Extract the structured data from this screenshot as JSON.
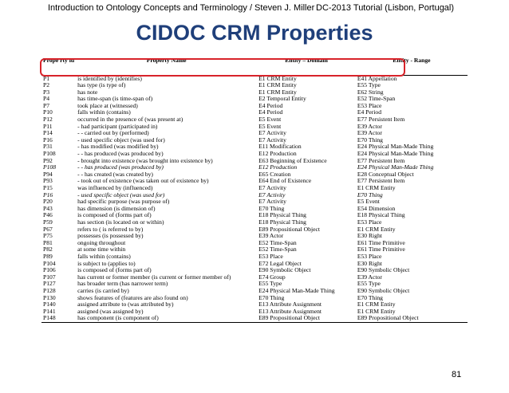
{
  "header": {
    "left": "Introduction to Ontology Concepts and Terminology / Steven J. Miller",
    "right": "DC-2013 Tutorial (Lisbon, Portugal)"
  },
  "title": "CIDOC CRM Properties",
  "table": {
    "columns": [
      "Prope rty id",
      "Property Name",
      "Entity – Domain",
      "Entity - Range"
    ],
    "rows": [
      {
        "id": "P1",
        "name": "is identified by (identifies)",
        "domain": "E1 CRM Entity",
        "range": "E41 Appellation"
      },
      {
        "id": "P2",
        "name": "has type (is type of)",
        "domain": "E1 CRM Entity",
        "range": "E55 Type"
      },
      {
        "id": "P3",
        "name": "has note",
        "domain": "E1 CRM Entity",
        "range": "E62 String"
      },
      {
        "id": "P4",
        "name": "has time-span (is time-span of)",
        "domain": "E2 Temporal Entity",
        "range": "E52 Time-Span"
      },
      {
        "id": "P7",
        "name": "took place at (witnessed)",
        "domain": "E4 Period",
        "range": "E53 Place"
      },
      {
        "id": "P10",
        "name": "falls within (contains)",
        "domain": "E4 Period",
        "range": "E4 Period"
      },
      {
        "id": "P12",
        "name": "occurred in the presence of (was present at)",
        "domain": "E5 Event",
        "range": "E77 Persistent Item"
      },
      {
        "id": "P11",
        "name": "- had participant (participated in)",
        "domain": "E5 Event",
        "range": "E39 Actor"
      },
      {
        "id": "P14",
        "name": "- - carried out by (performed)",
        "domain": "E7 Activity",
        "range": "E39 Actor"
      },
      {
        "id": "P16",
        "name": "- used specific object (was used for)",
        "domain": "E7 Activity",
        "range": "E70 Thing"
      },
      {
        "id": "P31",
        "name": "- has modified (was modified by)",
        "domain": "E11 Modification",
        "range": "E24 Physical Man-Made Thing"
      },
      {
        "id": "P108",
        "name": "- - has produced (was produced by)",
        "domain": "E12 Production",
        "range": "E24 Physical Man-Made Thing"
      },
      {
        "id": "P92",
        "name": "- brought into existence (was brought into existence by)",
        "domain": "E63 Beginning of Existence",
        "range": "E77 Persistent Item"
      },
      {
        "id": "P108",
        "name": "- - has produced (was produced by)",
        "domain": "E12 Production",
        "range": "E24 Physical Man-Made Thing",
        "italic": true
      },
      {
        "id": "P94",
        "name": "- - has created (was created by)",
        "domain": "E65 Creation",
        "range": "E28 Conceptual Object"
      },
      {
        "id": "P93",
        "name": "- took out of existence (was taken out of existence by)",
        "domain": "E64 End of Existence",
        "range": "E77 Persistent Item"
      },
      {
        "id": "P15",
        "name": "was influenced by (influenced)",
        "domain": "E7 Activity",
        "range": "E1 CRM Entity"
      },
      {
        "id": "P16",
        "name": "- used specific object (was used for)",
        "domain": "E7 Activity",
        "range": "E70 Thing",
        "italic": true
      },
      {
        "id": "P20",
        "name": "had specific purpose (was purpose of)",
        "domain": "E7 Activity",
        "range": "E5 Event"
      },
      {
        "id": "P43",
        "name": "has dimension (is dimension of)",
        "domain": "E70 Thing",
        "range": "E54 Dimension"
      },
      {
        "id": "P46",
        "name": "is composed of (forms part of)",
        "domain": "E18 Physical Thing",
        "range": "E18 Physical Thing"
      },
      {
        "id": "P59",
        "name": "has section (is located on or within)",
        "domain": "E18 Physical Thing",
        "range": "E53 Place"
      },
      {
        "id": "P67",
        "name": "refers to ( is referred to by)",
        "domain": "E89 Propositional Object",
        "range": "E1 CRM Entity"
      },
      {
        "id": "P75",
        "name": "possesses (is possessed by)",
        "domain": "E39 Actor",
        "range": "E30 Right"
      },
      {
        "id": "P81",
        "name": "ongoing throughout",
        "domain": "E52 Time-Span",
        "range": "E61 Time Primitive"
      },
      {
        "id": "P82",
        "name": "at some time within",
        "domain": "E52 Time-Span",
        "range": "E61 Time Primitive"
      },
      {
        "id": "P89",
        "name": "falls within (contains)",
        "domain": "E53 Place",
        "range": "E53 Place"
      },
      {
        "id": "P104",
        "name": "is subject to (applies to)",
        "domain": "E72 Legal Object",
        "range": "E30 Right"
      },
      {
        "id": "P106",
        "name": "is composed of (forms part of)",
        "domain": "E90 Symbolic Object",
        "range": "E90 Symbolic Object"
      },
      {
        "id": "P107",
        "name": "has current or former member (is current or former member of)",
        "domain": "E74 Group",
        "range": "E39 Actor"
      },
      {
        "id": "P127",
        "name": "has broader term (has narrower term)",
        "domain": "E55 Type",
        "range": "E55 Type"
      },
      {
        "id": "P128",
        "name": "carries (is carried by)",
        "domain": "E24 Physical Man-Made Thing",
        "range": "E90 Symbolic Object"
      },
      {
        "id": "P130",
        "name": "shows features of (features are also found on)",
        "domain": "E70 Thing",
        "range": "E70 Thing"
      },
      {
        "id": "P140",
        "name": "assigned attribute to (was attributed by)",
        "domain": "E13 Attribute Assignment",
        "range": "E1 CRM Entity"
      },
      {
        "id": "P141",
        "name": "assigned (was assigned by)",
        "domain": "E13 Attribute Assignment",
        "range": "E1 CRM Entity"
      },
      {
        "id": "P148",
        "name": "has component (is component of)",
        "domain": "E89 Propositional Object",
        "range": "E89 Propositional Object"
      }
    ]
  },
  "page_number": "81"
}
